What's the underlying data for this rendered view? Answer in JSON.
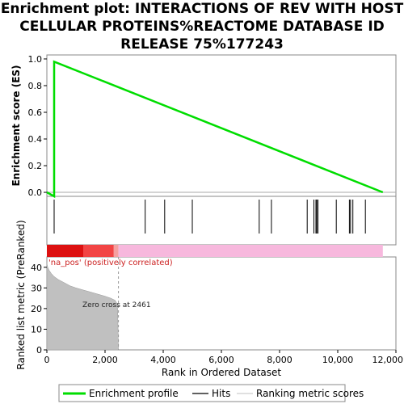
{
  "chart_data": {
    "type": "line",
    "title_lines": [
      "Enrichment plot: INTERACTIONS OF REV WITH HOST",
      "CELLULAR PROTEINS%REACTOME DATABASE ID",
      "RELEASE 75%177243"
    ],
    "es_panel": {
      "ylabel": "Enrichment score (ES)",
      "ylim": [
        -0.03,
        1.03
      ],
      "yticks": [
        0.0,
        0.2,
        0.4,
        0.6,
        0.8,
        1.0
      ],
      "ytick_labels": [
        "0.0",
        "0.2",
        "0.4",
        "0.6",
        "0.8",
        "1.0"
      ],
      "series": [
        {
          "name": "Enrichment profile",
          "color": "#00dd00",
          "x": [
            0,
            250,
            250,
            11550
          ],
          "y": [
            0.0,
            -0.03,
            0.98,
            0.0
          ]
        }
      ]
    },
    "hits": [
      250,
      3380,
      4050,
      5000,
      7300,
      7720,
      8950,
      9180,
      9250,
      9280,
      9320,
      9950,
      10400,
      10440,
      10520,
      10950
    ],
    "colorbar": {
      "segments": [
        {
          "from": 0,
          "to": 1250,
          "color": "#dd1111"
        },
        {
          "from": 1250,
          "to": 2300,
          "color": "#f24444"
        },
        {
          "from": 2300,
          "to": 2461,
          "color": "#f5a0a0"
        },
        {
          "from": 2461,
          "to": 11550,
          "color": "#f7b8dd"
        }
      ],
      "label": "'na_pos' (positively correlated)"
    },
    "metric_panel": {
      "ylabel": "Ranked list metric (PreRanked)",
      "ylim": [
        0,
        45
      ],
      "yticks": [
        0,
        10,
        20,
        30,
        40
      ],
      "ytick_labels": [
        "0",
        "10",
        "20",
        "30",
        "40"
      ],
      "x": [
        0,
        30,
        80,
        150,
        250,
        400,
        600,
        800,
        1000,
        1250,
        1500,
        1750,
        2000,
        2200,
        2350,
        2430,
        2461
      ],
      "y": [
        42,
        40,
        38.5,
        37,
        35.5,
        34,
        32.5,
        31,
        30,
        29,
        28,
        27,
        26,
        25,
        24,
        22,
        0
      ],
      "zero_cross_label": "Zero cross at 2461"
    },
    "xaxis": {
      "label": "Rank in Ordered Dataset",
      "xlim": [
        0,
        12000
      ],
      "xticks": [
        0,
        2000,
        4000,
        6000,
        8000,
        10000,
        12000
      ],
      "xtick_labels": [
        "0",
        "2,000",
        "4,000",
        "6,000",
        "8,000",
        "10,000",
        "12,000"
      ]
    },
    "legend": {
      "placement": "bottom",
      "items": [
        {
          "label": "Enrichment profile",
          "color": "#00dd00"
        },
        {
          "label": "Hits",
          "color": "#000000"
        },
        {
          "label": "Ranking metric scores",
          "color": "#c0c0c0"
        }
      ]
    }
  }
}
